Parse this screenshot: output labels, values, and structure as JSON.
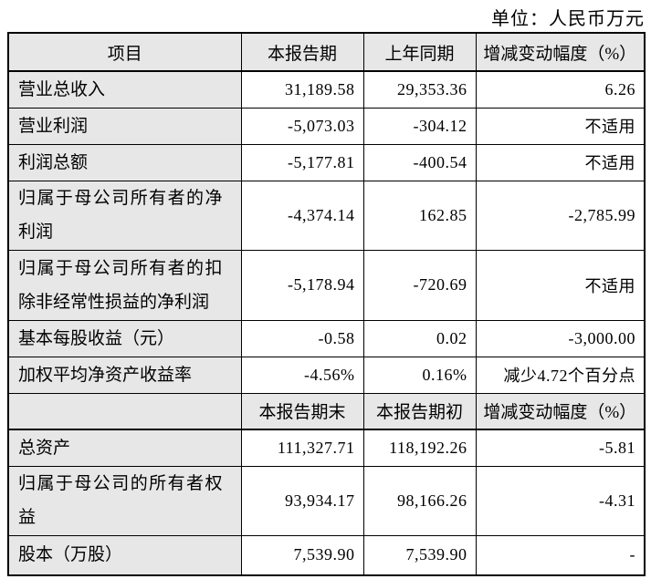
{
  "unit_label": "单位：人民币万元",
  "colors": {
    "header_bg": "#e7e7e7",
    "border": "#000000",
    "text": "#000000",
    "page_bg": "#ffffff"
  },
  "table": {
    "header1": {
      "item": "项目",
      "current": "本报告期",
      "prior": "上年同期",
      "change": "增减变动幅度（%）"
    },
    "period_rows": [
      {
        "label": "营业总收入",
        "current": "31,189.58",
        "prior": "29,353.36",
        "change": "6.26"
      },
      {
        "label": "营业利润",
        "current": "-5,073.03",
        "prior": "-304.12",
        "change": "不适用"
      },
      {
        "label": "利润总额",
        "current": "-5,177.81",
        "prior": "-400.54",
        "change": "不适用"
      },
      {
        "label": "归属于母公司所有者的净利润",
        "current": "-4,374.14",
        "prior": "162.85",
        "change": "-2,785.99"
      },
      {
        "label": "归属于母公司所有者的扣除非经常性损益的净利润",
        "current": "-5,178.94",
        "prior": "-720.69",
        "change": "不适用"
      },
      {
        "label": "基本每股收益（元）",
        "current": "-0.58",
        "prior": "0.02",
        "change": "-3,000.00"
      },
      {
        "label": "加权平均净资产收益率",
        "current": "-4.56%",
        "prior": "0.16%",
        "change": "减少4.72个百分点"
      }
    ],
    "header2": {
      "item": "",
      "current": "本报告期末",
      "prior": "本报告期初",
      "change": "增减变动幅度（%）"
    },
    "balance_rows": [
      {
        "label": "总资产",
        "current": "111,327.71",
        "prior": "118,192.26",
        "change": "-5.81"
      },
      {
        "label": "归属于母公司的所有者权益",
        "current": "93,934.17",
        "prior": "98,166.26",
        "change": "-4.31"
      },
      {
        "label": "股本（万股）",
        "current": "7,539.90",
        "prior": "7,539.90",
        "change": "-"
      }
    ]
  }
}
